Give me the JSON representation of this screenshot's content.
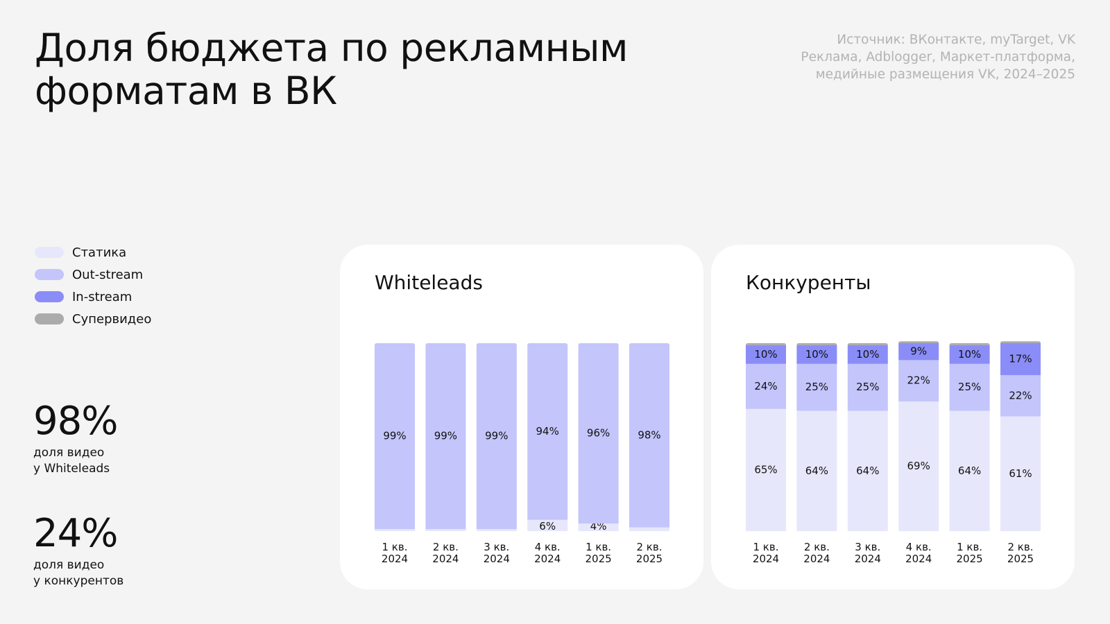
{
  "header": {
    "title_line1": "Доля бюджета по рекламным",
    "title_line2": "форматам в ВК",
    "source_line1": "Источник: ВКонтакте, myTarget, VK",
    "source_line2": "Реклама, Adblogger, Маркет-платформа,",
    "source_line3": "медийные размещения VK, 2024–2025"
  },
  "legend": [
    {
      "label": "Статика",
      "color": "#e7e7fc"
    },
    {
      "label": "Out-stream",
      "color": "#c3c5fb"
    },
    {
      "label": "In-stream",
      "color": "#8a8df7"
    },
    {
      "label": "Супервидео",
      "color": "#ababab"
    }
  ],
  "stats": [
    {
      "value": "98%",
      "caption_line1": "доля видео",
      "caption_line2": "у Whiteleads"
    },
    {
      "value": "24%",
      "caption_line1": "доля видео",
      "caption_line2": "у конкурентов"
    }
  ],
  "chart_data": [
    {
      "type": "bar",
      "stacked": true,
      "title": "Whiteleads",
      "categories": [
        [
          "1 кв.",
          "2024"
        ],
        [
          "2 кв.",
          "2024"
        ],
        [
          "3 кв.",
          "2024"
        ],
        [
          "4 кв.",
          "2024"
        ],
        [
          "1 кв.",
          "2025"
        ],
        [
          "2 кв.",
          "2025"
        ]
      ],
      "ylim": [
        0,
        100
      ],
      "series": [
        {
          "name": "Статика",
          "color": "#e7e7fc",
          "values": [
            1,
            1,
            1,
            6,
            4,
            2
          ],
          "labels": [
            "",
            "",
            "",
            "6%",
            "4%",
            ""
          ]
        },
        {
          "name": "Out-stream",
          "color": "#c3c5fb",
          "values": [
            99,
            99,
            99,
            94,
            96,
            98
          ],
          "labels": [
            "99%",
            "99%",
            "99%",
            "94%",
            "96%",
            "98%"
          ]
        }
      ]
    },
    {
      "type": "bar",
      "stacked": true,
      "title": "Конкуренты",
      "categories": [
        [
          "1 кв.",
          "2024"
        ],
        [
          "2 кв.",
          "2024"
        ],
        [
          "3 кв.",
          "2024"
        ],
        [
          "4 кв.",
          "2024"
        ],
        [
          "1 кв.",
          "2025"
        ],
        [
          "2 кв.",
          "2025"
        ]
      ],
      "ylim": [
        0,
        100
      ],
      "series": [
        {
          "name": "Статика",
          "color": "#e7e7fc",
          "values": [
            65,
            64,
            64,
            69,
            64,
            61
          ],
          "labels": [
            "65%",
            "64%",
            "64%",
            "69%",
            "64%",
            "61%"
          ]
        },
        {
          "name": "Out-stream",
          "color": "#c3c5fb",
          "values": [
            24,
            25,
            25,
            22,
            25,
            22
          ],
          "labels": [
            "24%",
            "25%",
            "25%",
            "22%",
            "25%",
            "22%"
          ]
        },
        {
          "name": "In-stream",
          "color": "#8a8df7",
          "values": [
            10,
            10,
            10,
            9,
            10,
            17
          ],
          "labels": [
            "10%",
            "10%",
            "10%",
            "9%",
            "10%",
            "17%"
          ]
        },
        {
          "name": "Супервидео",
          "color": "#ababab",
          "values": [
            1,
            1,
            1,
            1,
            1,
            1
          ],
          "labels": [
            "",
            "",
            "",
            "",
            "",
            ""
          ]
        }
      ]
    }
  ]
}
